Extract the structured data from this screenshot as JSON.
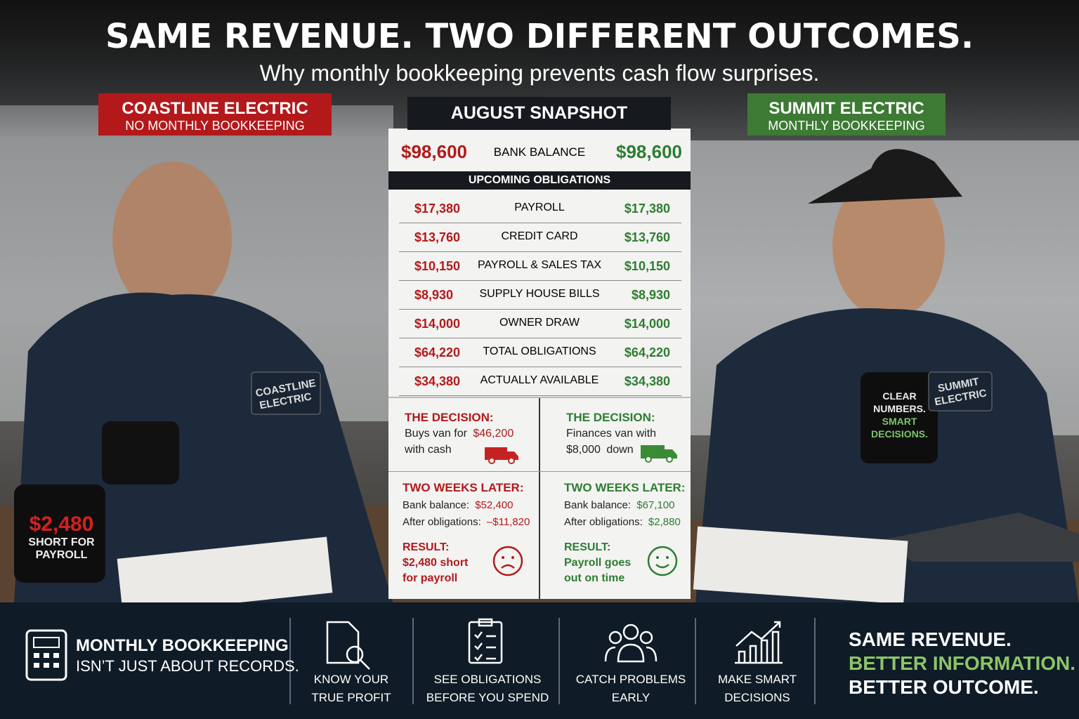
{
  "header": {
    "title": "SAME REVENUE. TWO DIFFERENT OUTCOMES.",
    "subtitle": "Why monthly bookkeeping prevents cash flow surprises."
  },
  "left": {
    "company": "COASTLINE ELECTRIC",
    "tagline": "NO MONTHLY BOOKKEEPING",
    "patch": [
      "COASTLINE",
      "ELECTRIC"
    ],
    "mug": [
      "$2,480",
      "SHORT FOR",
      "PAYROLL"
    ]
  },
  "right": {
    "company": "SUMMIT ELECTRIC",
    "tagline": "MONTHLY BOOKKEEPING",
    "patch": [
      "SUMMIT",
      "ELECTRIC"
    ],
    "mug": [
      "CLEAR",
      "NUMBERS.",
      "SMART",
      "DECISIONS."
    ]
  },
  "snapshot": {
    "title": "AUGUST SNAPSHOT",
    "balance": [
      "$98,600",
      "BANK BALANCE",
      "$98,600"
    ],
    "obligations_title": "UPCOMING OBLIGATIONS",
    "rows": [
      [
        "$17,380",
        "PAYROLL",
        "$17,380"
      ],
      [
        "$13,760",
        "CREDIT CARD",
        "$13,760"
      ],
      [
        "$10,150",
        "PAYROLL & SALES TAX",
        "$10,150"
      ],
      [
        "$8,930",
        "SUPPLY HOUSE BILLS",
        "$8,930"
      ],
      [
        "$14,000",
        "OWNER DRAW",
        "$14,000"
      ],
      [
        "$64,220",
        "TOTAL OBLIGATIONS",
        "$64,220"
      ],
      [
        "$34,380",
        "ACTUALLY AVAILABLE",
        "$34,380"
      ]
    ]
  },
  "decision": {
    "left": {
      "title": "THE DECISION:",
      "lines": [
        [
          "Buys van for ",
          "$46,200"
        ],
        [
          "with cash"
        ]
      ]
    },
    "right": {
      "title": "THE DECISION:",
      "lines": [
        [
          "Finances van with"
        ],
        [
          "$8,000",
          " down"
        ]
      ]
    }
  },
  "later": {
    "left": {
      "title": "TWO WEEKS LATER:",
      "lines": [
        [
          "Bank balance: ",
          "$52,400"
        ],
        [
          "After obligations: ",
          "–$11,820"
        ]
      ],
      "result_title": "RESULT:",
      "result": [
        "$2,480 short",
        "for payroll"
      ]
    },
    "right": {
      "title": "TWO WEEKS LATER:",
      "lines": [
        [
          "Bank balance: ",
          "$67,100"
        ],
        [
          "After obligations: ",
          "$2,880"
        ]
      ],
      "result_title": "RESULT:",
      "result": [
        "Payroll goes",
        "out on time"
      ]
    }
  },
  "footer": {
    "lead": [
      "MONTHLY BOOKKEEPING",
      "ISN’T JUST ABOUT RECORDS."
    ],
    "items": [
      [
        "KNOW YOUR",
        "TRUE PROFIT"
      ],
      [
        "SEE OBLIGATIONS",
        "BEFORE YOU SPEND"
      ],
      [
        "CATCH PROBLEMS",
        "EARLY"
      ],
      [
        "MAKE SMART",
        "DECISIONS"
      ]
    ],
    "closing": [
      "SAME REVENUE.",
      "BETTER INFORMATION.",
      "BETTER OUTCOME."
    ]
  }
}
